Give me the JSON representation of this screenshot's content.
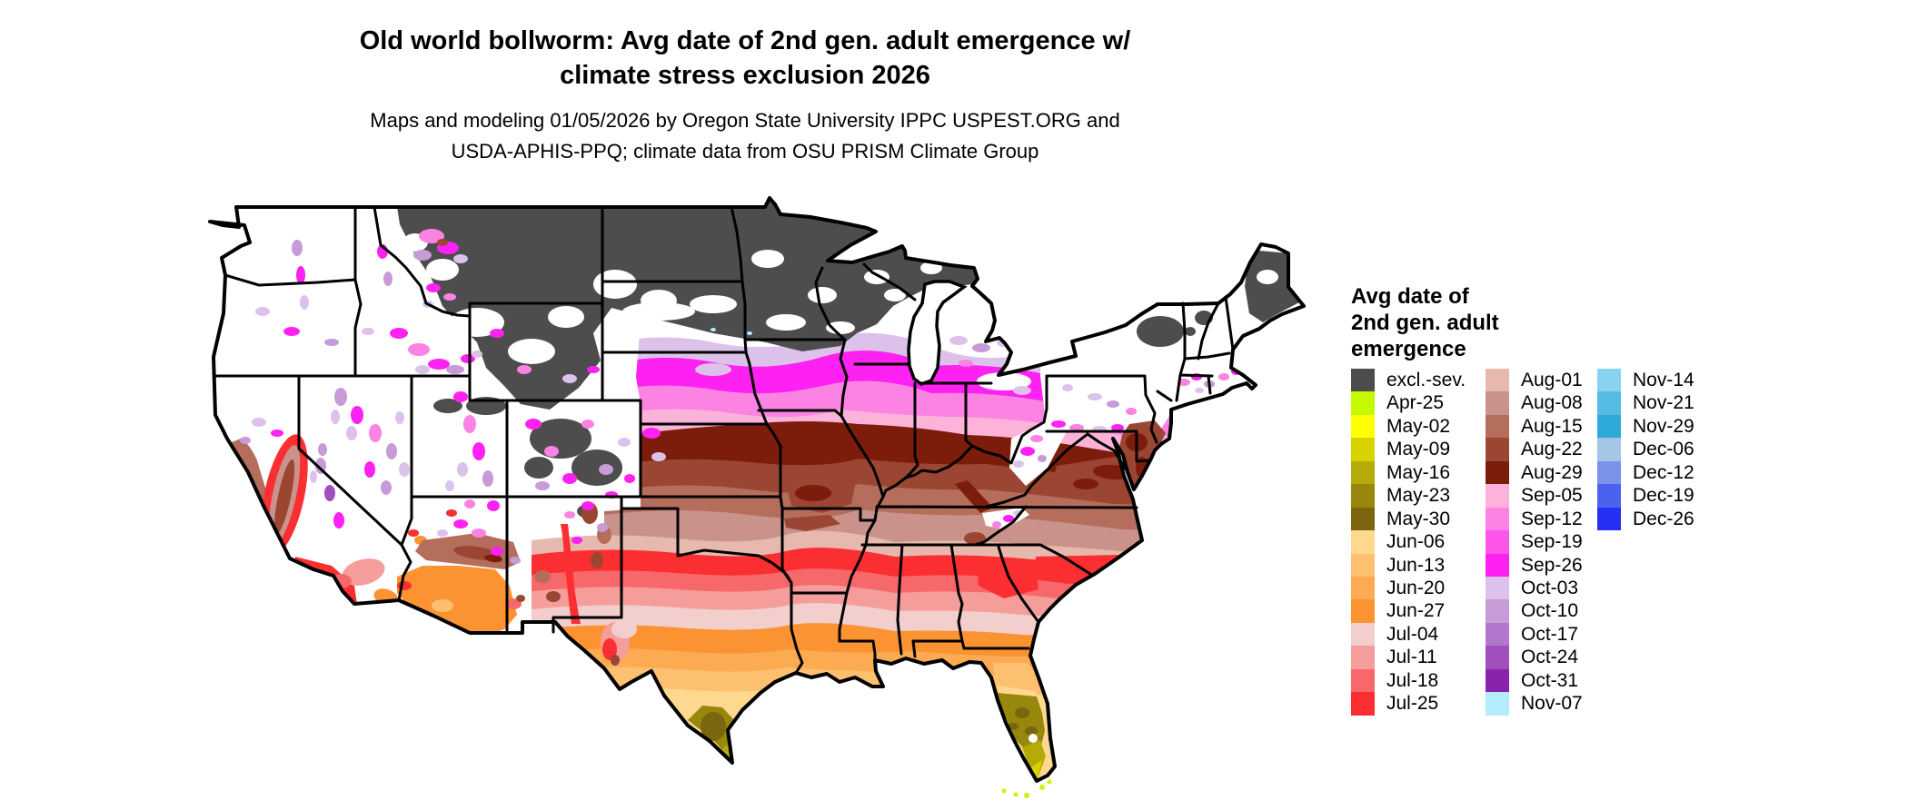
{
  "header": {
    "title_line1": "Old world bollworm: Avg date of 2nd gen. adult emergence w/",
    "title_line2": "climate stress exclusion 2026",
    "subtitle_line1": "Maps and modeling 01/05/2026 by Oregon State University IPPC USPEST.ORG and",
    "subtitle_line2": "USDA-APHIS-PPQ; climate data from OSU PRISM Climate Group"
  },
  "legend": {
    "title": "Avg date of\n2nd gen. adult\nemergence",
    "columns": [
      [
        {
          "label": "excl.-sev.",
          "color": "#4d4d4d"
        },
        {
          "label": "Apr-25",
          "color": "#c6f800"
        },
        {
          "label": "May-02",
          "color": "#ffff00"
        },
        {
          "label": "May-09",
          "color": "#d8d200"
        },
        {
          "label": "May-16",
          "color": "#b5ab08"
        },
        {
          "label": "May-23",
          "color": "#97870d"
        },
        {
          "label": "May-30",
          "color": "#7b650e"
        },
        {
          "label": "Jun-06",
          "color": "#fed88f"
        },
        {
          "label": "Jun-13",
          "color": "#fdbf70"
        },
        {
          "label": "Jun-20",
          "color": "#fcab53"
        },
        {
          "label": "Jun-27",
          "color": "#fb9332"
        },
        {
          "label": "Jul-04",
          "color": "#f2cecd"
        },
        {
          "label": "Jul-11",
          "color": "#f49d9b"
        },
        {
          "label": "Jul-18",
          "color": "#f7686a"
        },
        {
          "label": "Jul-25",
          "color": "#fb2e31"
        }
      ],
      [
        {
          "label": "Aug-01",
          "color": "#e7b8ae"
        },
        {
          "label": "Aug-08",
          "color": "#c9928a"
        },
        {
          "label": "Aug-15",
          "color": "#b56d5c"
        },
        {
          "label": "Aug-22",
          "color": "#9a4632"
        },
        {
          "label": "Aug-29",
          "color": "#7c1d0b"
        },
        {
          "label": "Sep-05",
          "color": "#fdb3d9"
        },
        {
          "label": "Sep-12",
          "color": "#fc82e3"
        },
        {
          "label": "Sep-19",
          "color": "#fd54ea"
        },
        {
          "label": "Sep-26",
          "color": "#fd22f1"
        },
        {
          "label": "Oct-03",
          "color": "#dcc2ea"
        },
        {
          "label": "Oct-10",
          "color": "#c79bd8"
        },
        {
          "label": "Oct-17",
          "color": "#b276cc"
        },
        {
          "label": "Oct-24",
          "color": "#a04fbd"
        },
        {
          "label": "Oct-31",
          "color": "#8b22ad"
        },
        {
          "label": "Nov-07",
          "color": "#b3ecfc"
        }
      ],
      [
        {
          "label": "Nov-14",
          "color": "#87d3f0"
        },
        {
          "label": "Nov-21",
          "color": "#57bce4"
        },
        {
          "label": "Nov-29",
          "color": "#2da8d8"
        },
        {
          "label": "Dec-06",
          "color": "#a3c6e4"
        },
        {
          "label": "Dec-12",
          "color": "#7a93e8"
        },
        {
          "label": "Dec-19",
          "color": "#4a62ef"
        },
        {
          "label": "Dec-26",
          "color": "#2630f5"
        }
      ]
    ]
  },
  "map": {
    "region": "contiguous United States",
    "background_color": "#ffffff",
    "boundary_color": "#000000",
    "excluded_color": "#4d4d4d"
  }
}
